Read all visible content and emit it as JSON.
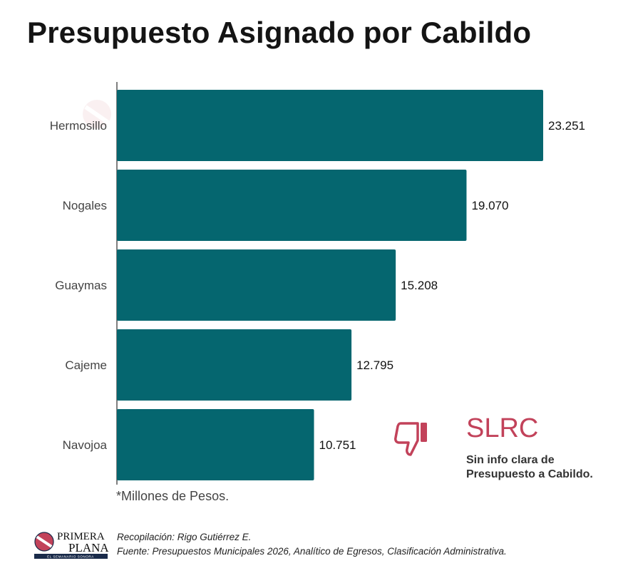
{
  "title": "Presupuesto Asignado por Cabildo",
  "chart_data": {
    "type": "bar",
    "orientation": "horizontal",
    "title": "Presupuesto Asignado por Cabildo",
    "categories": [
      "Hermosillo",
      "Nogales",
      "Guaymas",
      "Cajeme",
      "Navojoa"
    ],
    "values": [
      23.251,
      19.07,
      15.208,
      12.795,
      10.751
    ],
    "value_labels": [
      "23.251",
      "19.070",
      "15.208",
      "12.795",
      "10.751"
    ],
    "unit_note": "*Millones de Pesos.",
    "xlim": [
      0,
      25
    ],
    "bar_color": "#05666f",
    "grid": false
  },
  "note": "*Millones de Pesos.",
  "slrc": {
    "title": "SLRC",
    "line1": "Sin info clara de",
    "line2": "Presupuesto a Cabildo.",
    "icon": "thumbs-down-icon",
    "color": "#c2425a"
  },
  "logo": {
    "text1": "PRIMERA",
    "text2": "PLANA",
    "tagline": "EL SEMANARIO SONORA"
  },
  "credits": {
    "compilation": "Recopilación: Rigo Gutiérrez E.",
    "source": "Fuente: Presupuestos Municipales 2026, Analítico de Egresos, Clasificación Administrativa."
  }
}
